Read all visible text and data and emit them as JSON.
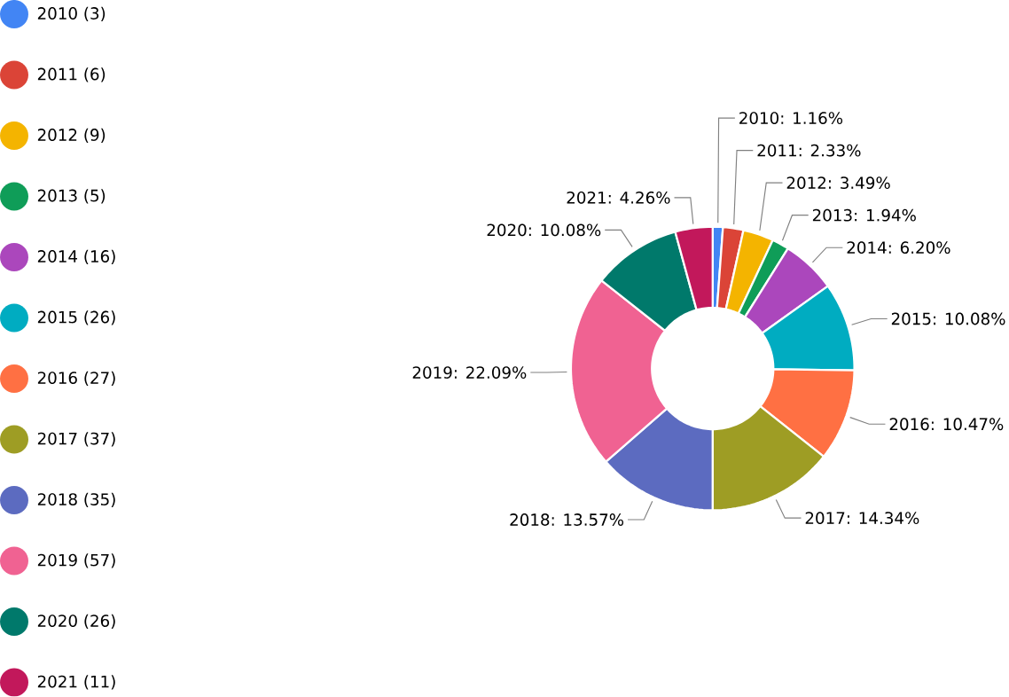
{
  "chart_data": {
    "type": "donut",
    "categories": [
      "2010 (3)",
      "2011 (6)",
      "2012 (9)",
      "2013 (5)",
      "2014 (16)",
      "2015 (26)",
      "2016 (27)",
      "2017 (37)",
      "2018 (35)",
      "2019 (57)",
      "2020 (26)",
      "2021 (11)"
    ],
    "values": [
      1.16,
      2.33,
      3.49,
      1.94,
      6.2,
      10.08,
      10.47,
      14.34,
      13.57,
      22.09,
      10.08,
      4.26
    ],
    "colors": [
      "#4285f4",
      "#db4437",
      "#f4b400",
      "#0f9d58",
      "#ab47bc",
      "#00acc1",
      "#ff7043",
      "#9e9d24",
      "#5c6bc0",
      "#f06292",
      "#00796b",
      "#c2185b"
    ],
    "value_labels": [
      "2010: 1.16%",
      "2011: 2.33%",
      "2012: 3.49%",
      "2013: 1.94%",
      "2014: 6.20%",
      "2015: 10.08%",
      "2016: 10.47%",
      "2017: 14.34%",
      "2018: 13.57%",
      "2019: 22.09%",
      "2020: 10.08%",
      "2021: 4.26%"
    ],
    "legend": "left"
  }
}
